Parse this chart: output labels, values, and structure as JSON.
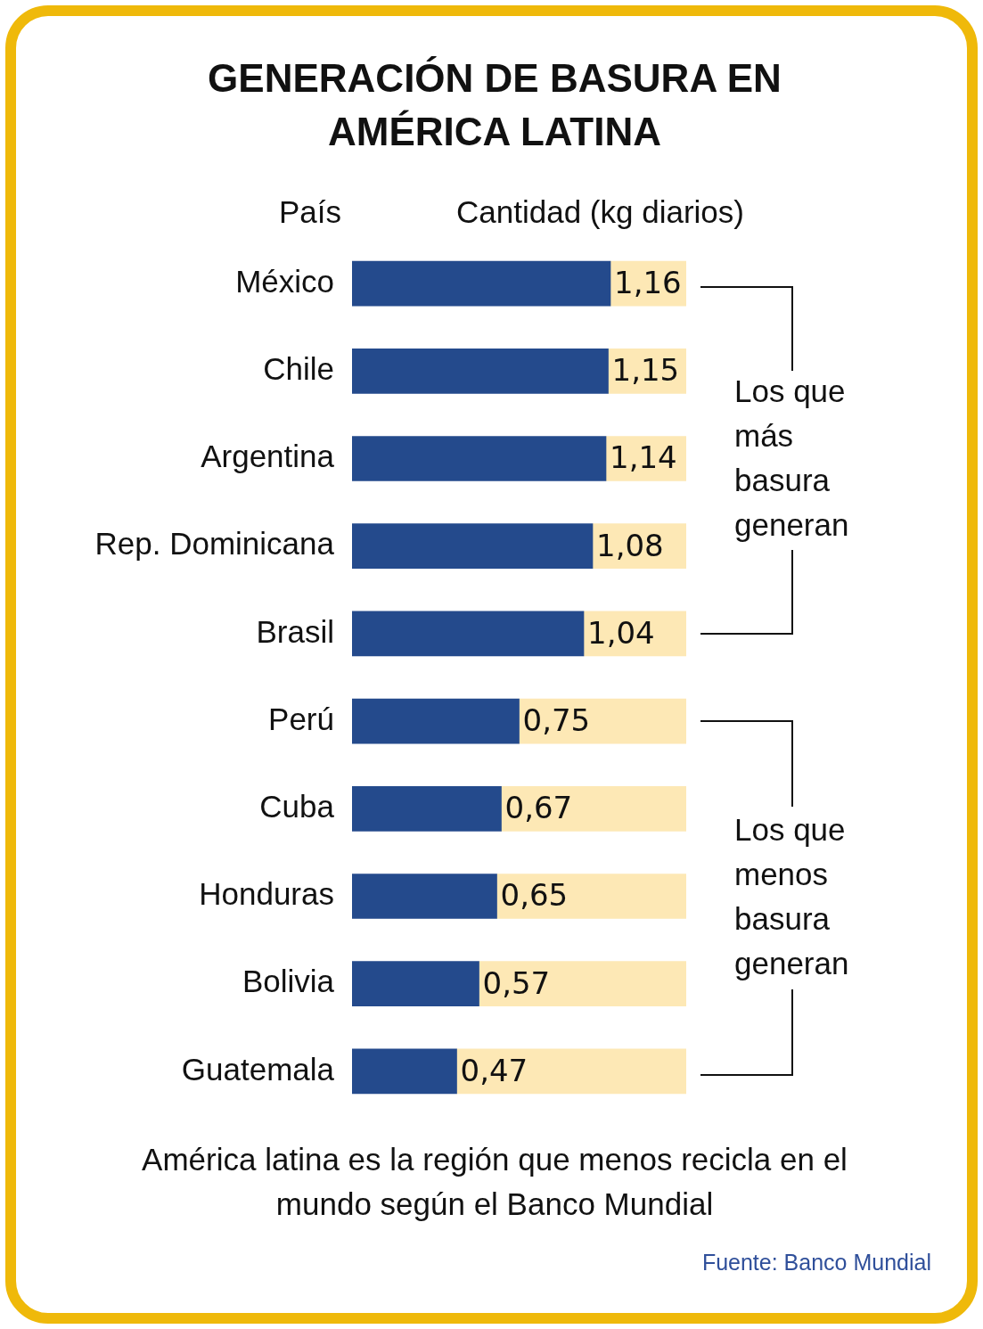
{
  "chart_data": {
    "type": "bar",
    "orientation": "horizontal",
    "stacked": true,
    "title": "GENERACIÓN DE BASURA EN AMÉRICA LATINA",
    "xlabel": "Cantidad (kg diarios)",
    "ylabel": "País",
    "categories": [
      "México",
      "Chile",
      "Argentina",
      "Rep. Dominicana",
      "Brasil",
      "Perú",
      "Cuba",
      "Honduras",
      "Bolivia",
      "Guatemala"
    ],
    "series": [
      {
        "color": "#244a8c",
        "values": [
          1.16,
          1.15,
          1.14,
          1.08,
          1.04,
          0.75,
          0.67,
          0.65,
          0.57,
          0.47
        ],
        "value_labels": [
          "1,16",
          "1,15",
          "1,14",
          "1,08",
          "1,04",
          "0,75",
          "0,67",
          "0,65",
          "0,57",
          "0,47"
        ]
      },
      {
        "color": "#fde8b5",
        "values": [
          0.34,
          0.35,
          0.36,
          0.42,
          0.46,
          0.75,
          0.83,
          0.85,
          0.93,
          1.03
        ]
      }
    ],
    "xlim": [
      0,
      1.5
    ],
    "tick_labels": "y",
    "annotations": [
      "Los que más basura generan",
      "Los que menos basura generan",
      "América latina es la región que menos recicla en el mundo según el Banco Mundial",
      "Fuente: Banco Mundial"
    ]
  }
}
